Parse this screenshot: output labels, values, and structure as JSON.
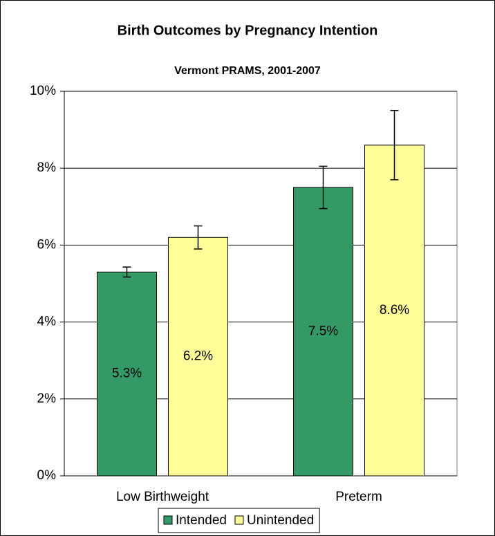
{
  "chart_data": {
    "type": "bar",
    "title": "Birth Outcomes by Pregnancy Intention",
    "subtitle": "Vermont PRAMS, 2001-2007",
    "categories": [
      "Low Birthweight",
      "Preterm"
    ],
    "series": [
      {
        "name": "Intended",
        "color": "#339966",
        "values": [
          5.3,
          7.5
        ],
        "value_labels": [
          "5.3%",
          "7.5%"
        ],
        "errors": [
          0.13,
          0.55
        ]
      },
      {
        "name": "Unintended",
        "color": "#ffff99",
        "values": [
          6.2,
          8.6
        ],
        "value_labels": [
          "6.2%",
          "8.6%"
        ],
        "errors": [
          0.3,
          0.9
        ]
      }
    ],
    "ylim": [
      0,
      10
    ],
    "yticks": [
      {
        "value": 0,
        "label": "0%"
      },
      {
        "value": 2,
        "label": "2%"
      },
      {
        "value": 4,
        "label": "4%"
      },
      {
        "value": 6,
        "label": "6%"
      },
      {
        "value": 8,
        "label": "8%"
      },
      {
        "value": 10,
        "label": "10%"
      }
    ],
    "grid": true,
    "legend": "bottom"
  }
}
